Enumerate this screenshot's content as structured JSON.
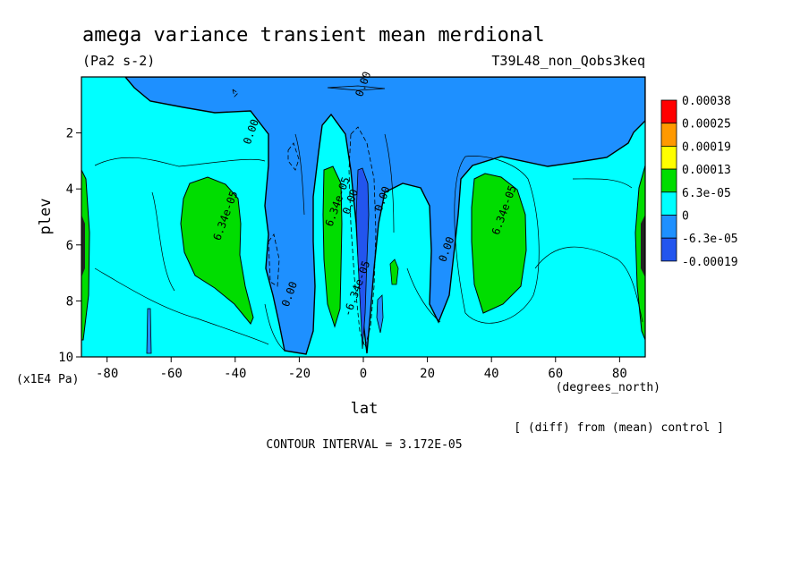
{
  "header": {
    "title": "amega variance transient mean merdional",
    "units": "(Pa2 s-2)",
    "run": "T39L48_non_Qobs3keq"
  },
  "footer": {
    "diff_note": "[ (diff) from (mean) control ]",
    "contour_interval": "CONTOUR INTERVAL = 3.172E-05"
  },
  "chart_data": {
    "type": "contour",
    "xlabel": "lat",
    "x_units": "(degrees_north)",
    "ylabel": "plev",
    "y_units": "(x1E4 Pa)",
    "xlim": [
      -88,
      88
    ],
    "ylim": [
      10,
      0
    ],
    "xticks": [
      -80,
      -60,
      -40,
      -20,
      0,
      20,
      40,
      60,
      80
    ],
    "yticks": [
      2,
      4,
      6,
      8,
      10
    ],
    "colorbar": {
      "levels": [
        "0.00038",
        "0.00025",
        "0.00019",
        "0.00013",
        "6.3e-05",
        "0",
        "-6.3e-05",
        "-0.00019"
      ],
      "colors": [
        "#ff0000",
        "#ff9900",
        "#ffff00",
        "#00dd00",
        "#00ffff",
        "#1e90ff",
        "#2255ee"
      ]
    },
    "contour_labels": [
      {
        "text": "0.00",
        "lat": -34,
        "plev": 2.0
      },
      {
        "text": "0.00",
        "lat": 1,
        "plev": 0.3
      },
      {
        "text": "0.00",
        "lat": -22,
        "plev": 7.8
      },
      {
        "text": "0.00",
        "lat": 7,
        "plev": 4.4
      },
      {
        "text": "0.00",
        "lat": 27,
        "plev": 6.2
      },
      {
        "text": "0.00",
        "lat": -3,
        "plev": 4.5
      },
      {
        "text": "6.34e-05",
        "lat": -42,
        "plev": 5.0
      },
      {
        "text": "6.34e-05",
        "lat": -7,
        "plev": 4.5
      },
      {
        "text": "6.34e-05",
        "lat": 45,
        "plev": 4.8
      },
      {
        "text": "-6.34e-05",
        "lat": -1,
        "plev": 7.6
      }
    ]
  }
}
